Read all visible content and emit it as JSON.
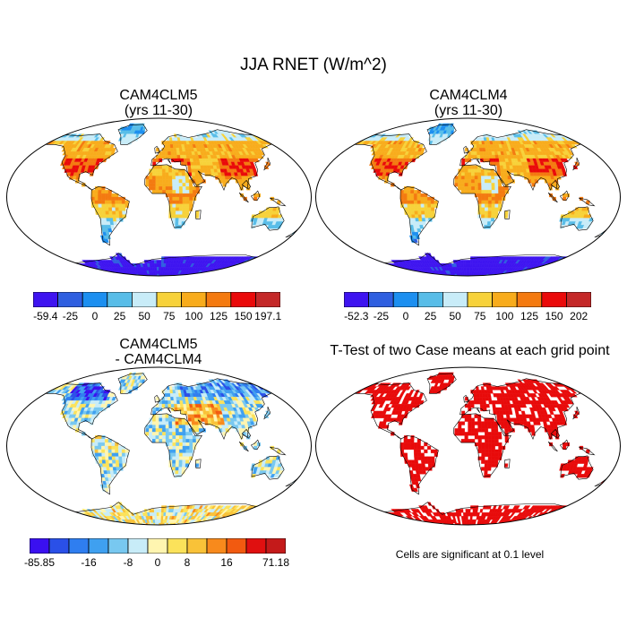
{
  "title": "JJA RNET (W/m^2)",
  "panels": [
    {
      "title_line1": "CAM4CLM5",
      "title_line2": "(yrs 11-30)",
      "colorbar": {
        "colors": [
          "#3e14f0",
          "#2f5fe0",
          "#1c8ff0",
          "#58bde8",
          "#c8ecf8",
          "#f7d23a",
          "#f8ac1c",
          "#f47a10",
          "#ea0a0a",
          "#c42828"
        ],
        "labels": [
          "-59.4",
          "-25",
          "0",
          "25",
          "50",
          "75",
          "100",
          "125",
          "150",
          "197.1"
        ]
      }
    },
    {
      "title_line1": "CAM4CLM4",
      "title_line2": "(yrs 11-30)",
      "colorbar": {
        "colors": [
          "#3e14f0",
          "#2f5fe0",
          "#1c8ff0",
          "#58bde8",
          "#c8ecf8",
          "#f7d23a",
          "#f8ac1c",
          "#f47a10",
          "#ea0a0a",
          "#c42828"
        ],
        "labels": [
          "-52.3",
          "-25",
          "0",
          "25",
          "50",
          "75",
          "100",
          "125",
          "150",
          "202"
        ]
      }
    },
    {
      "title_line1": "CAM4CLM5",
      "title_line2": "- CAM4CLM4",
      "colorbar": {
        "colors": [
          "#3a10f0",
          "#2a50e8",
          "#2f7ef0",
          "#3fa0f0",
          "#78c8f0",
          "#c8ecf8",
          "#fff5b0",
          "#fbe25a",
          "#f9c238",
          "#f88a1c",
          "#f25a10",
          "#e01010",
          "#c41a1a"
        ],
        "labels": [
          "-85.85",
          "-16",
          "-8",
          "0",
          "8",
          "16",
          "71.18"
        ]
      }
    },
    {
      "title": "T-Test of two Case means at each grid point",
      "note": "Cells are significant at 0.1 level"
    }
  ]
}
